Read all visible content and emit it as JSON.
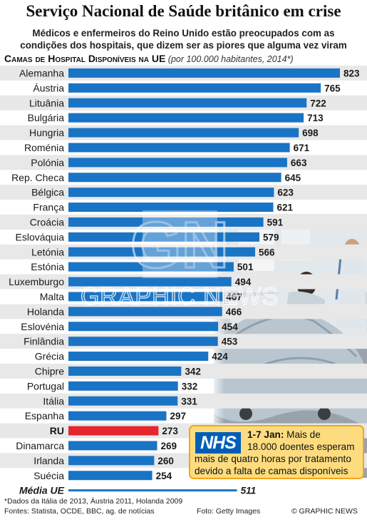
{
  "header": {
    "title": "Serviço Nacional de Saúde britânico em crise",
    "subtitle_line1": "Médicos e enfermeiros do Reino Unido estão preocupados com as",
    "subtitle_line2": "condições dos hospitais, que dizem ser as piores que alguma vez viram"
  },
  "chart_data": {
    "type": "bar",
    "orientation": "horizontal",
    "title": "Camas de Hospital Disponíveis na UE",
    "subtitle": "(por 100.000 habitantes, 2014*)",
    "categories": [
      "Alemanha",
      "Áustria",
      "Lituânia",
      "Bulgária",
      "Hungria",
      "Roménia",
      "Polónia",
      "Rep. Checa",
      "Bélgica",
      "França",
      "Croácia",
      "Eslováquia",
      "Letónia",
      "Estónia",
      "Luxemburgo",
      "Malta",
      "Holanda",
      "Eslovénia",
      "Finlândia",
      "Grécia",
      "Chipre",
      "Portugal",
      "Itália",
      "Espanha",
      "RU",
      "Dinamarca",
      "Irlanda",
      "Suécia",
      "Média UE"
    ],
    "values": [
      823,
      765,
      722,
      713,
      698,
      671,
      663,
      645,
      623,
      621,
      591,
      579,
      566,
      501,
      494,
      467,
      466,
      454,
      453,
      424,
      342,
      332,
      331,
      297,
      273,
      269,
      260,
      254,
      511
    ],
    "highlight": [
      "RU",
      "Média UE"
    ],
    "colors": {
      "bar": "#1a74c5",
      "highlight_bar": "#e5262e",
      "row_stripe": "#e8e8e8"
    },
    "xlim": [
      0,
      823
    ],
    "grid": false,
    "legend": "none"
  },
  "callout": {
    "logo_text": "NHS",
    "lead": "1-7 Jan:",
    "text1": " Mais de",
    "text2": "18.000 doentes esperam",
    "text3": "mais de quatro horas por tratamento",
    "text4": "devido a falta de camas disponíveis"
  },
  "watermark": {
    "logo": "GN",
    "text": "GRAPHIC NEWS"
  },
  "footer": {
    "footnote": "*Dados da Itália de 2013, Áustria 2011, Holanda 2009",
    "sources": "Fontes: Statista, OCDE, BBC, ag. de notícias",
    "photo_credit": "Foto: Getty Images",
    "copyright": "© GRAPHIC NEWS"
  }
}
